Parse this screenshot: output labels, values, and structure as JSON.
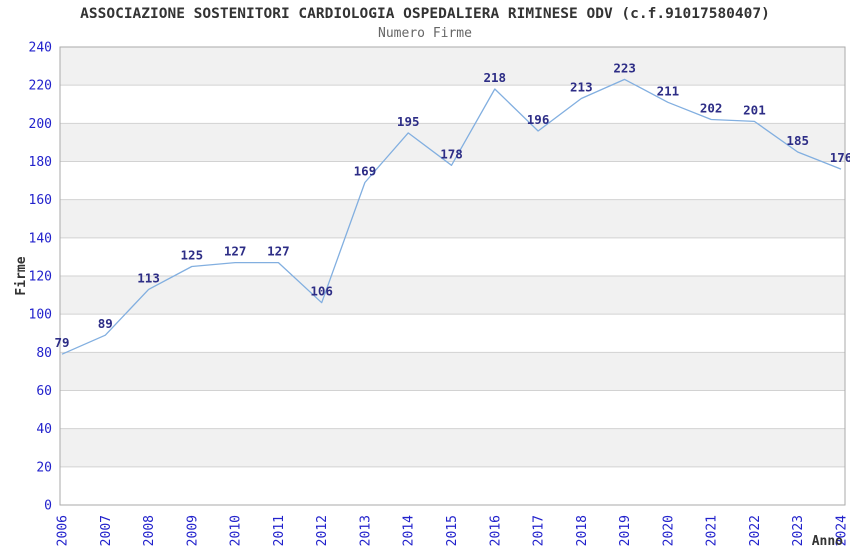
{
  "chart_data": {
    "type": "line",
    "title": "ASSOCIAZIONE SOSTENITORI CARDIOLOGIA OSPEDALIERA RIMINESE ODV (c.f.91017580407)",
    "subtitle": "Numero Firme",
    "xlabel": "Anno",
    "ylabel": "Firme",
    "categories": [
      "2006",
      "2007",
      "2008",
      "2009",
      "2010",
      "2011",
      "2012",
      "2013",
      "2014",
      "2015",
      "2016",
      "2017",
      "2018",
      "2019",
      "2020",
      "2021",
      "2022",
      "2023",
      "2024"
    ],
    "values": [
      79,
      89,
      113,
      125,
      127,
      127,
      106,
      169,
      195,
      178,
      218,
      196,
      213,
      223,
      211,
      202,
      201,
      185,
      176
    ],
    "ylim": [
      0,
      240
    ],
    "ytick_step": 20,
    "grid": true,
    "legend_position": "none",
    "point_labels_visible": true,
    "colors": {
      "line": "#82afe0",
      "point_label": "#2d2d86",
      "tick_label": "#2222cc",
      "axis_label": "#333333",
      "title": "#333333",
      "subtitle": "#666666",
      "band_alt": "#f1f1f1",
      "band_main": "#ffffff",
      "gridline": "#d2d2d2",
      "border": "#aaaaaa",
      "background": "#ffffff"
    }
  }
}
